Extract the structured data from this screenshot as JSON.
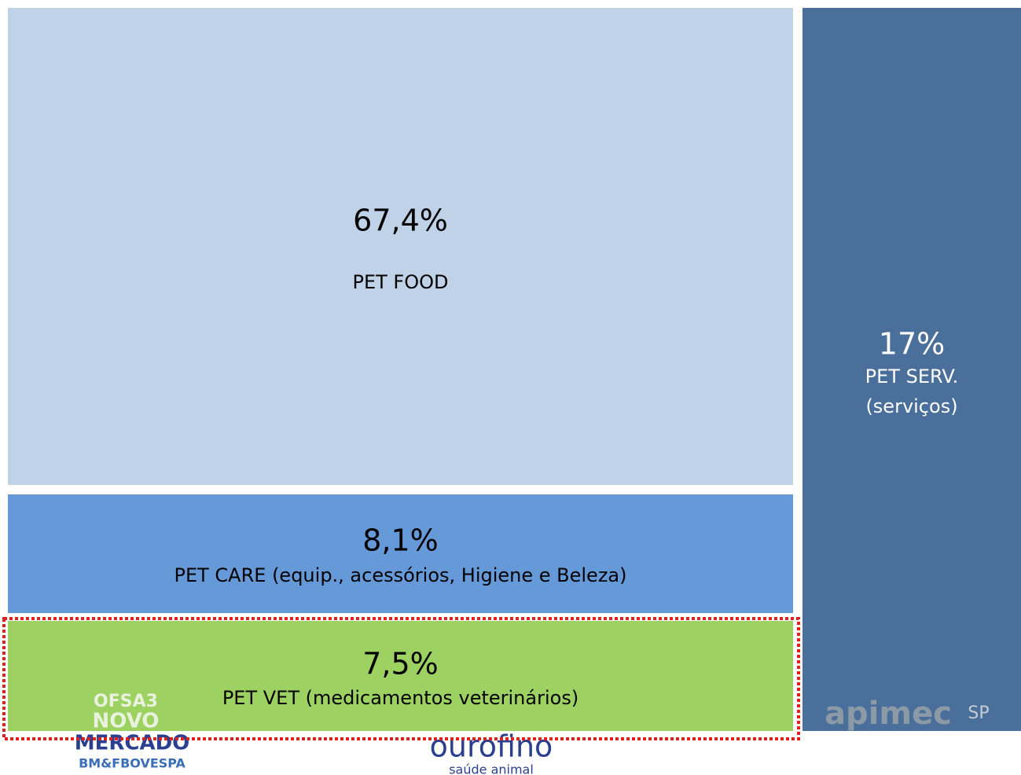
{
  "chart_data": {
    "type": "treemap",
    "categories": [
      "PET FOOD",
      "PET CARE  (equip., acessórios, Higiene e Beleza)",
      "PET VET (medicamentos veterinários)",
      "PET SERV. (serviços)"
    ],
    "values": [
      67.4,
      8.1,
      7.5,
      17
    ],
    "value_labels": [
      "67,4%",
      "8,1%",
      "7,5%",
      "17%"
    ],
    "colors": [
      "#c0d2e8",
      "#6699d8",
      "#9dd262",
      "#4a6f9b"
    ],
    "highlight": 2
  },
  "logos": [
    "OFSA3",
    "NOVO",
    "MERCADO",
    "BM&FBOVESPA",
    "ourofino",
    "saúde animal",
    "apimec",
    "SP"
  ]
}
